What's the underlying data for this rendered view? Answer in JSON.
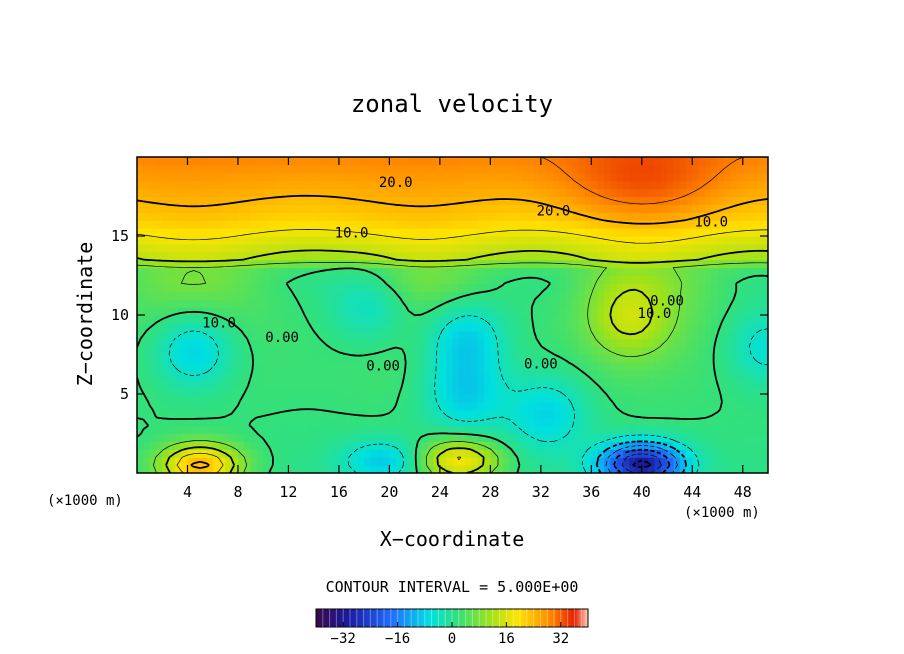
{
  "chart_data": {
    "type": "heatmap",
    "title": "zonal velocity",
    "xlabel": "X−coordinate",
    "ylabel": "Z−coordinate",
    "x_unit": "(×1000 m)",
    "y_unit": "(×1000 m)",
    "xlim": [
      0,
      50
    ],
    "ylim": [
      0,
      20
    ],
    "x_ticks": [
      4,
      8,
      12,
      16,
      20,
      24,
      28,
      32,
      36,
      40,
      44,
      48
    ],
    "y_ticks": [
      5,
      10,
      15
    ],
    "contour_interval_text": "CONTOUR INTERVAL = 5.000E+00",
    "contour_interval": 5,
    "contour_labels": [
      {
        "text": "20.0",
        "x": 20.5,
        "y": 18.1
      },
      {
        "text": "20.0",
        "x": 33.0,
        "y": 16.3
      },
      {
        "text": "10.0",
        "x": 17.0,
        "y": 14.9
      },
      {
        "text": "10.0",
        "x": 45.5,
        "y": 15.6
      },
      {
        "text": "10.0",
        "x": 6.5,
        "y": 9.2
      },
      {
        "text": "0.00",
        "x": 11.5,
        "y": 8.3
      },
      {
        "text": "0.00",
        "x": 19.5,
        "y": 6.5
      },
      {
        "text": "0.00",
        "x": 32.0,
        "y": 6.6
      },
      {
        "text": "0.00",
        "x": 42.0,
        "y": 10.6
      },
      {
        "text": "10.0",
        "x": 41.0,
        "y": 9.8
      }
    ],
    "colorbar": {
      "range": [
        -40,
        40
      ],
      "ticks": [
        -32,
        -16,
        0,
        16,
        32
      ],
      "tick_labels": [
        "−32",
        "−16",
        "0",
        "16",
        "32"
      ],
      "colormap": "rainbow (purple-blue-cyan-green-yellow-orange-red)"
    },
    "field_features": [
      {
        "kind": "high",
        "x": 40,
        "y": 18.5,
        "value": 25
      },
      {
        "kind": "high",
        "x": 5,
        "y": 0.5,
        "value": 25
      },
      {
        "kind": "high",
        "x": 25.5,
        "y": 0.8,
        "value": 20
      },
      {
        "kind": "high",
        "x": 39,
        "y": 9.8,
        "value": 12
      },
      {
        "kind": "low",
        "x": 40,
        "y": 0.6,
        "value": -28
      },
      {
        "kind": "low",
        "x": 4.5,
        "y": 7.8,
        "value": -7
      },
      {
        "kind": "low",
        "x": 26,
        "y": 8.6,
        "value": -7
      },
      {
        "kind": "low",
        "x": 26,
        "y": 5.0,
        "value": -6
      },
      {
        "kind": "low",
        "x": 32.5,
        "y": 3.8,
        "value": -5
      },
      {
        "kind": "low",
        "x": 18.5,
        "y": 10.6,
        "value": -4
      },
      {
        "kind": "low",
        "x": 19.5,
        "y": 0.8,
        "value": -6
      },
      {
        "kind": "low",
        "x": 50,
        "y": 8,
        "value": -4
      }
    ]
  }
}
